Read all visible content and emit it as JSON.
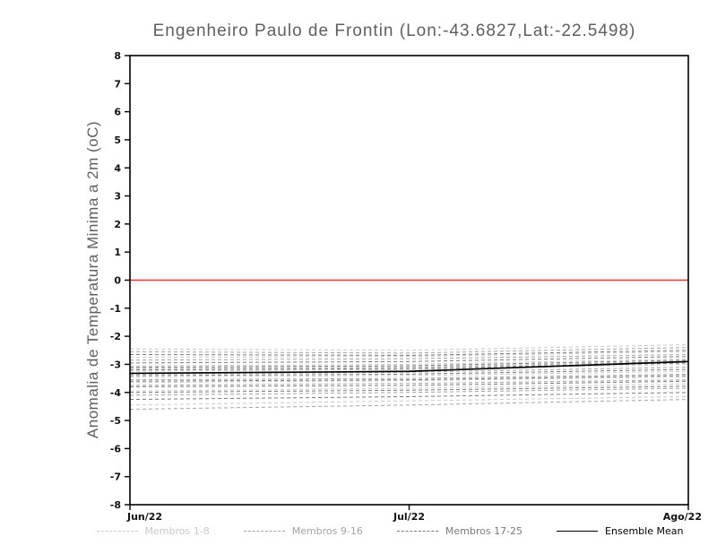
{
  "chart_data": {
    "type": "line",
    "title": "Engenheiro Paulo de Frontin (Lon:-43.6827,Lat:-22.5498)",
    "xlabel": "",
    "ylabel": "Anomalia de Temperatura Minima a 2m (oC)",
    "ylim": [
      -8,
      8
    ],
    "ytick_step": 1,
    "x": [
      0,
      0.5,
      1
    ],
    "x_tick_labels": [
      "Jun/22",
      "Jul/22",
      "Ago/22"
    ],
    "grid": false,
    "zero_line": {
      "y": 0,
      "color": "#ee3333"
    },
    "groups": [
      {
        "name": "Membros 1-8",
        "color": "#c9c9c9",
        "dash": "4 3",
        "series": [
          [
            -2.45,
            -2.5,
            -2.3
          ],
          [
            -2.75,
            -2.72,
            -2.55
          ],
          [
            -3.05,
            -3.0,
            -2.8
          ],
          [
            -3.25,
            -3.18,
            -3.0
          ],
          [
            -3.45,
            -3.4,
            -3.25
          ],
          [
            -3.65,
            -3.58,
            -3.45
          ],
          [
            -3.95,
            -3.85,
            -3.7
          ],
          [
            -4.45,
            -4.3,
            -4.15
          ]
        ]
      },
      {
        "name": "Membros 9-16",
        "color": "#a3a3a3",
        "dash": "4 3",
        "series": [
          [
            -2.55,
            -2.6,
            -2.4
          ],
          [
            -2.85,
            -2.8,
            -2.65
          ],
          [
            -3.15,
            -3.1,
            -2.9
          ],
          [
            -3.35,
            -3.28,
            -3.1
          ],
          [
            -3.55,
            -3.5,
            -3.35
          ],
          [
            -3.75,
            -3.68,
            -3.55
          ],
          [
            -4.1,
            -4.0,
            -3.85
          ],
          [
            -4.6,
            -4.45,
            -4.25
          ]
        ]
      },
      {
        "name": "Membros 17-25",
        "color": "#7a7a7a",
        "dash": "4 3",
        "series": [
          [
            -2.65,
            -2.68,
            -2.5
          ],
          [
            -2.95,
            -2.9,
            -2.72
          ],
          [
            -3.2,
            -3.15,
            -2.95
          ],
          [
            -3.4,
            -3.35,
            -3.18
          ],
          [
            -3.6,
            -3.55,
            -3.4
          ],
          [
            -3.8,
            -3.75,
            -3.6
          ],
          [
            -4.0,
            -3.92,
            -3.78
          ],
          [
            -4.25,
            -4.15,
            -4.0
          ],
          [
            -3.1,
            -3.05,
            -2.85
          ]
        ]
      }
    ],
    "mean": {
      "name": "Ensemble Mean",
      "color": "#000000",
      "values": [
        -3.32,
        -3.25,
        -2.9
      ]
    },
    "legend_position": "bottom"
  },
  "legend": [
    {
      "label": "Membros 1-8",
      "color": "#c9c9c9",
      "style": "dashed"
    },
    {
      "label": "Membros 9-16",
      "color": "#a3a3a3",
      "style": "dashed"
    },
    {
      "label": "Membros 17-25",
      "color": "#7a7a7a",
      "style": "dashed"
    },
    {
      "label": "Ensemble Mean",
      "color": "#000000",
      "style": "solid"
    }
  ]
}
